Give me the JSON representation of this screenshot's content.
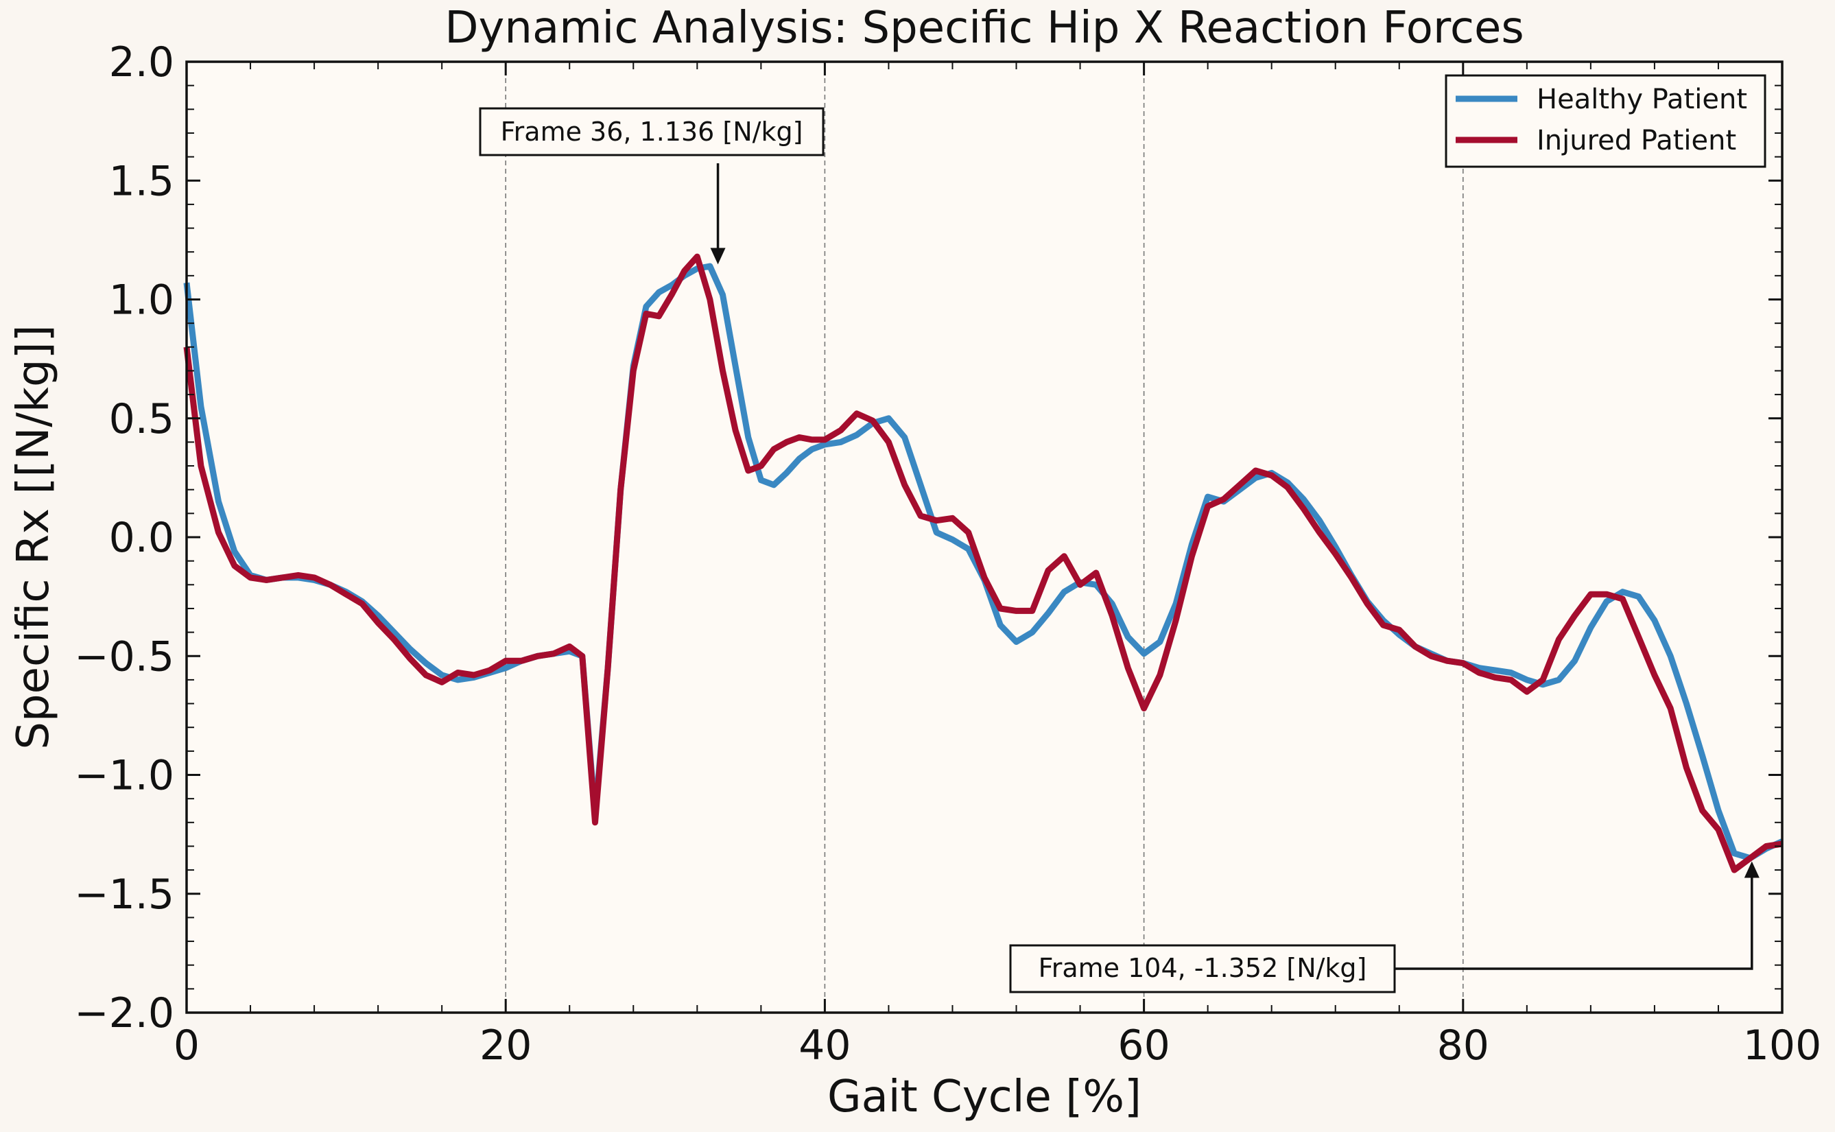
{
  "chart_data": {
    "type": "line",
    "title": "Dynamic Analysis: Specific Hip X Reaction Forces",
    "xlabel": "Gait Cycle [%]",
    "ylabel": "Specific Rx [[N/kg]]",
    "xlim": [
      0,
      100
    ],
    "ylim": [
      -2.0,
      2.0
    ],
    "xticks": [
      0,
      20,
      40,
      60,
      80,
      100
    ],
    "yticks": [
      -2.0,
      -1.5,
      -1.0,
      -0.5,
      0.0,
      0.5,
      1.0,
      1.5,
      2.0
    ],
    "ytick_labels": [
      "−2.0",
      "−1.5",
      "−1.0",
      "−0.5",
      "0.0",
      "0.5",
      "1.0",
      "1.5",
      "2.0"
    ],
    "vertical_gridlines_at": [
      20,
      40,
      60,
      80
    ],
    "legend_position": "top-right",
    "series": [
      {
        "name": "Healthy Patient",
        "color": "#3a88c2",
        "x": [
          0.0,
          0.9,
          2.0,
          3.0,
          4.0,
          5.0,
          6.0,
          7.0,
          8.0,
          9.0,
          10.0,
          11.0,
          12.0,
          13.0,
          14.0,
          15.0,
          16.0,
          17.0,
          18.0,
          19.0,
          20.0,
          21.0,
          22.0,
          23.0,
          24.0,
          24.8,
          25.6,
          26.4,
          27.2,
          28.0,
          28.8,
          29.6,
          30.4,
          31.2,
          32.0,
          32.8,
          33.6,
          34.4,
          35.2,
          36.0,
          36.8,
          37.6,
          38.4,
          39.2,
          40.0,
          41.0,
          42.0,
          43.0,
          44.0,
          45.0,
          46.0,
          47.0,
          48.0,
          49.0,
          50.0,
          51.0,
          52.0,
          53.0,
          54.0,
          55.0,
          56.0,
          57.0,
          58.0,
          59.0,
          60.0,
          61.0,
          62.0,
          63.0,
          64.0,
          65.0,
          66.0,
          67.0,
          68.0,
          69.0,
          70.0,
          71.0,
          72.0,
          73.0,
          74.0,
          75.0,
          76.0,
          77.0,
          78.0,
          79.0,
          80.0,
          81.0,
          82.0,
          83.0,
          84.0,
          85.0,
          86.0,
          87.0,
          88.0,
          89.0,
          90.0,
          91.0,
          92.0,
          93.0,
          94.0,
          95.0,
          96.0,
          97.0,
          98.0,
          99.0,
          100.0
        ],
        "values": [
          1.07,
          0.55,
          0.15,
          -0.06,
          -0.16,
          -0.18,
          -0.17,
          -0.17,
          -0.18,
          -0.2,
          -0.23,
          -0.27,
          -0.33,
          -0.4,
          -0.47,
          -0.53,
          -0.58,
          -0.6,
          -0.59,
          -0.57,
          -0.55,
          -0.52,
          -0.5,
          -0.49,
          -0.48,
          -0.5,
          -1.17,
          -0.55,
          0.2,
          0.72,
          0.97,
          1.03,
          1.06,
          1.1,
          1.13,
          1.14,
          1.02,
          0.72,
          0.42,
          0.24,
          0.22,
          0.27,
          0.33,
          0.37,
          0.39,
          0.4,
          0.43,
          0.48,
          0.5,
          0.42,
          0.22,
          0.02,
          -0.01,
          -0.05,
          -0.18,
          -0.37,
          -0.44,
          -0.4,
          -0.32,
          -0.23,
          -0.19,
          -0.2,
          -0.28,
          -0.42,
          -0.49,
          -0.44,
          -0.28,
          -0.03,
          0.17,
          0.15,
          0.2,
          0.25,
          0.27,
          0.23,
          0.16,
          0.07,
          -0.04,
          -0.16,
          -0.27,
          -0.35,
          -0.41,
          -0.46,
          -0.49,
          -0.52,
          -0.53,
          -0.55,
          -0.56,
          -0.57,
          -0.6,
          -0.62,
          -0.6,
          -0.52,
          -0.38,
          -0.27,
          -0.23,
          -0.25,
          -0.35,
          -0.5,
          -0.7,
          -0.92,
          -1.15,
          -1.33,
          -1.35,
          -1.31,
          -1.28
        ]
      },
      {
        "name": "Injured Patient",
        "color": "#a50d2e",
        "x": [
          0.0,
          0.9,
          2.0,
          3.0,
          4.0,
          5.0,
          6.0,
          7.0,
          8.0,
          9.0,
          10.0,
          11.0,
          12.0,
          13.0,
          14.0,
          15.0,
          16.0,
          17.0,
          18.0,
          19.0,
          20.0,
          21.0,
          22.0,
          23.0,
          24.0,
          24.8,
          25.6,
          26.4,
          27.2,
          28.0,
          28.8,
          29.6,
          30.4,
          31.2,
          32.0,
          32.8,
          33.6,
          34.4,
          35.2,
          36.0,
          36.8,
          37.6,
          38.4,
          39.2,
          40.0,
          41.0,
          42.0,
          43.0,
          44.0,
          45.0,
          46.0,
          47.0,
          48.0,
          49.0,
          50.0,
          51.0,
          52.0,
          53.0,
          54.0,
          55.0,
          56.0,
          57.0,
          58.0,
          59.0,
          60.0,
          61.0,
          62.0,
          63.0,
          64.0,
          65.0,
          66.0,
          67.0,
          68.0,
          69.0,
          70.0,
          71.0,
          72.0,
          73.0,
          74.0,
          75.0,
          76.0,
          77.0,
          78.0,
          79.0,
          80.0,
          81.0,
          82.0,
          83.0,
          84.0,
          85.0,
          86.0,
          87.0,
          88.0,
          89.0,
          90.0,
          91.0,
          92.0,
          93.0,
          94.0,
          95.0,
          96.0,
          97.0,
          98.0,
          99.0,
          100.0
        ],
        "values": [
          0.8,
          0.3,
          0.02,
          -0.12,
          -0.17,
          -0.18,
          -0.17,
          -0.16,
          -0.17,
          -0.2,
          -0.24,
          -0.28,
          -0.36,
          -0.43,
          -0.51,
          -0.58,
          -0.61,
          -0.57,
          -0.58,
          -0.56,
          -0.52,
          -0.52,
          -0.5,
          -0.49,
          -0.46,
          -0.5,
          -1.2,
          -0.55,
          0.2,
          0.7,
          0.94,
          0.93,
          1.02,
          1.12,
          1.18,
          1.0,
          0.7,
          0.45,
          0.28,
          0.3,
          0.37,
          0.4,
          0.42,
          0.41,
          0.41,
          0.45,
          0.52,
          0.49,
          0.4,
          0.22,
          0.09,
          0.07,
          0.08,
          0.02,
          -0.17,
          -0.3,
          -0.31,
          -0.31,
          -0.14,
          -0.08,
          -0.2,
          -0.15,
          -0.33,
          -0.55,
          -0.72,
          -0.58,
          -0.35,
          -0.08,
          0.13,
          0.16,
          0.22,
          0.28,
          0.26,
          0.21,
          0.12,
          0.02,
          -0.07,
          -0.17,
          -0.28,
          -0.37,
          -0.39,
          -0.46,
          -0.5,
          -0.52,
          -0.53,
          -0.57,
          -0.59,
          -0.6,
          -0.65,
          -0.6,
          -0.43,
          -0.33,
          -0.24,
          -0.24,
          -0.26,
          -0.42,
          -0.58,
          -0.72,
          -0.97,
          -1.15,
          -1.23,
          -1.4,
          -1.35,
          -1.3,
          -1.29
        ]
      }
    ],
    "annotations": [
      {
        "text": "Frame 36, 1.136 [N/kg]",
        "x": 33.3,
        "y": 1.136
      },
      {
        "text": "Frame 104, -1.352 [N/kg]",
        "x": 98.1,
        "y": -1.352
      }
    ]
  }
}
